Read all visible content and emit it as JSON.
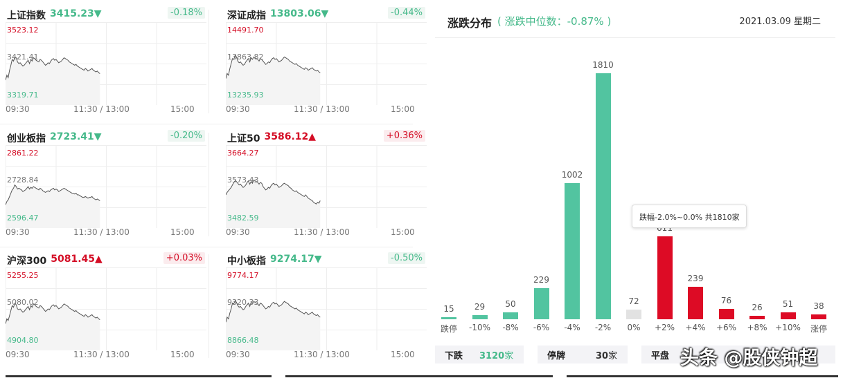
{
  "indices": [
    {
      "name": "上证指数",
      "value": "3415.23",
      "arrow": "▼",
      "dir": "down",
      "change": "-0.18%",
      "high": "3523.12",
      "mid": "3421.41",
      "low": "3319.71",
      "series": [
        30,
        36,
        33,
        42,
        48,
        55,
        53,
        58,
        57,
        52,
        50,
        51,
        49,
        47,
        48,
        50,
        52,
        54,
        50,
        55,
        53,
        57,
        56,
        54,
        53,
        52,
        55,
        54,
        52,
        50,
        48,
        49,
        51,
        50,
        53,
        55,
        56,
        54,
        55,
        53,
        51,
        52,
        53,
        55,
        57,
        56,
        55,
        54,
        52,
        51,
        50,
        49,
        48,
        49,
        47,
        46,
        45,
        44,
        43,
        42,
        44,
        43,
        41,
        42,
        43,
        44,
        42,
        41,
        40,
        41,
        39,
        38
      ]
    },
    {
      "name": "深证成指",
      "value": "13803.06",
      "arrow": "▼",
      "dir": "down",
      "change": "-0.44%",
      "high": "14491.70",
      "mid": "13863.82",
      "low": "13235.93",
      "series": [
        32,
        38,
        36,
        44,
        50,
        56,
        55,
        60,
        58,
        53,
        51,
        52,
        50,
        48,
        49,
        52,
        54,
        56,
        52,
        57,
        55,
        58,
        57,
        56,
        55,
        53,
        56,
        55,
        53,
        51,
        49,
        50,
        52,
        51,
        54,
        56,
        57,
        55,
        56,
        54,
        52,
        53,
        54,
        56,
        58,
        57,
        56,
        55,
        53,
        52,
        51,
        50,
        49,
        50,
        48,
        47,
        46,
        45,
        44,
        43,
        45,
        44,
        42,
        43,
        44,
        45,
        43,
        42,
        41,
        42,
        40,
        39
      ]
    },
    {
      "name": "创业板指",
      "value": "2723.41",
      "arrow": "▼",
      "dir": "down",
      "change": "-0.20%",
      "high": "2861.22",
      "mid": "2728.84",
      "low": "2596.47",
      "series": [
        28,
        32,
        34,
        38,
        42,
        46,
        48,
        52,
        50,
        47,
        48,
        47,
        46,
        44,
        45,
        46,
        48,
        50,
        47,
        49,
        48,
        50,
        49,
        48,
        47,
        46,
        48,
        47,
        45,
        44,
        43,
        44,
        45,
        44,
        46,
        47,
        48,
        46,
        47,
        46,
        44,
        45,
        46,
        47,
        48,
        47,
        46,
        45,
        44,
        43,
        42,
        42,
        41,
        42,
        40,
        40,
        39,
        38,
        37,
        37,
        38,
        37,
        36,
        37,
        37,
        38,
        36,
        35,
        34,
        35,
        34,
        33
      ]
    },
    {
      "name": "上证50",
      "value": "3586.12",
      "arrow": "▲",
      "dir": "up",
      "change": "+0.36%",
      "high": "3664.27",
      "mid": "3573.43",
      "low": "3482.59",
      "series": [
        40,
        43,
        45,
        47,
        49,
        52,
        55,
        57,
        56,
        54,
        52,
        53,
        51,
        49,
        50,
        52,
        55,
        57,
        53,
        56,
        54,
        58,
        57,
        56,
        55,
        53,
        55,
        54,
        50,
        48,
        46,
        47,
        49,
        48,
        51,
        53,
        54,
        52,
        53,
        51,
        49,
        50,
        51,
        53,
        54,
        53,
        52,
        51,
        49,
        48,
        46,
        45,
        44,
        45,
        43,
        42,
        41,
        40,
        39,
        38,
        40,
        38,
        36,
        35,
        34,
        33,
        31,
        30,
        29,
        31,
        30,
        33
      ]
    },
    {
      "name": "沪深300",
      "value": "5081.45",
      "arrow": "▲",
      "dir": "up",
      "change": "+0.03%",
      "high": "5255.25",
      "mid": "5080.02",
      "low": "4904.80",
      "series": [
        32,
        38,
        36,
        42,
        48,
        54,
        52,
        57,
        55,
        50,
        49,
        50,
        48,
        46,
        47,
        49,
        51,
        53,
        49,
        54,
        52,
        56,
        55,
        53,
        52,
        51,
        54,
        53,
        51,
        49,
        47,
        48,
        50,
        49,
        52,
        54,
        55,
        53,
        54,
        52,
        50,
        51,
        52,
        54,
        56,
        55,
        54,
        53,
        51,
        50,
        49,
        48,
        47,
        48,
        46,
        45,
        44,
        43,
        42,
        41,
        43,
        42,
        40,
        41,
        42,
        43,
        41,
        40,
        39,
        40,
        38,
        37
      ]
    },
    {
      "name": "中小板指",
      "value": "9274.17",
      "arrow": "▼",
      "dir": "down",
      "change": "-0.50%",
      "high": "9774.17",
      "mid": "9320.33",
      "low": "8866.48",
      "series": [
        34,
        40,
        38,
        45,
        50,
        57,
        56,
        60,
        58,
        54,
        52,
        53,
        51,
        49,
        50,
        53,
        55,
        57,
        53,
        58,
        56,
        59,
        58,
        57,
        56,
        54,
        57,
        56,
        54,
        52,
        50,
        51,
        53,
        52,
        55,
        57,
        58,
        56,
        57,
        55,
        53,
        54,
        55,
        57,
        59,
        58,
        57,
        56,
        54,
        53,
        52,
        51,
        50,
        51,
        49,
        48,
        47,
        46,
        45,
        44,
        46,
        45,
        43,
        44,
        45,
        46,
        44,
        43,
        42,
        43,
        41,
        40
      ]
    }
  ],
  "time_labels": {
    "open": "09:30",
    "mid": "11:30 / 13:00",
    "close": "15:00"
  },
  "distribution": {
    "title": "涨跌分布",
    "subtitle": "( 涨跌中位数：-0.87% )",
    "date": "2021.03.09 星期二",
    "tooltip": "跌幅-2.0%~0.0% 共1810家",
    "colors": {
      "down": "#52c4a0",
      "flat": "#e2e2e2",
      "up": "#dd0b25"
    }
  },
  "chart_data": {
    "type": "bar",
    "categories": [
      "跌停",
      "-10%",
      "-8%",
      "-6%",
      "-4%",
      "-2%",
      "0%",
      "+2%",
      "+4%",
      "+6%",
      "+8%",
      "+10%",
      "涨停"
    ],
    "values": [
      15,
      29,
      50,
      229,
      1002,
      1810,
      72,
      611,
      239,
      76,
      26,
      51,
      38
    ],
    "value_labels": [
      "15",
      "29",
      "50",
      "229",
      "1002",
      "1810",
      "72",
      "611",
      "239",
      "76",
      "26",
      "51",
      "38"
    ],
    "kinds": [
      "down",
      "down",
      "down",
      "down",
      "down",
      "down",
      "flat",
      "up",
      "up",
      "up",
      "up",
      "up",
      "up"
    ],
    "title": "",
    "xlabel": "",
    "ylabel": "",
    "ylim": [
      0,
      1810
    ]
  },
  "stats": {
    "down_label": "下跌",
    "down_value": "3120",
    "down_unit": "家",
    "halt_label": "停牌",
    "halt_value": "30",
    "halt_unit": "家",
    "flat_label": "平盘"
  },
  "watermark": "头条 @股侠钟超"
}
